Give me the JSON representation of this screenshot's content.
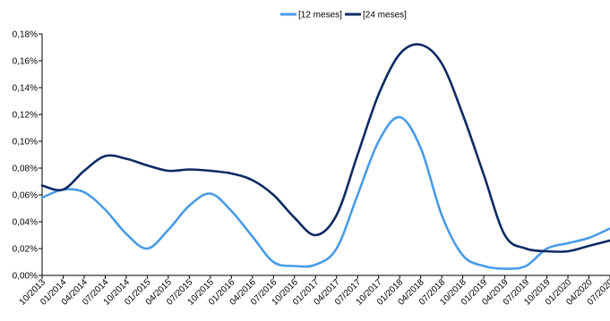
{
  "chart_data": {
    "type": "line",
    "title": "",
    "xlabel": "",
    "ylabel": "",
    "ylim": [
      0,
      0.18
    ],
    "yticks": [
      "0,00%",
      "0,02%",
      "0,04%",
      "0,06%",
      "0,08%",
      "0,10%",
      "0,12%",
      "0,14%",
      "0,16%",
      "0,18%"
    ],
    "ytick_values": [
      0,
      0.02,
      0.04,
      0.06,
      0.08,
      0.1,
      0.12,
      0.14,
      0.16,
      0.18
    ],
    "grid": false,
    "legend_position": "top",
    "x": [
      "10/2013",
      "01/2014",
      "04/2014",
      "07/2014",
      "10/2014",
      "01/2015",
      "04/2015",
      "07/2015",
      "10/2015",
      "01/2016",
      "04/2016",
      "07/2016",
      "10/2016",
      "01/2017",
      "04/2017",
      "07/2017",
      "10/2017",
      "01/2018",
      "04/2018",
      "07/2018",
      "10/2018",
      "01/2019",
      "04/2019",
      "07/2019",
      "10/2019",
      "01/2020",
      "04/2020",
      "07/2020"
    ],
    "series": [
      {
        "name": "[12 meses]",
        "color": "#4a9be8",
        "values": [
          0.058,
          0.064,
          0.062,
          0.049,
          0.031,
          0.02,
          0.034,
          0.052,
          0.061,
          0.048,
          0.029,
          0.01,
          0.007,
          0.008,
          0.02,
          0.06,
          0.1,
          0.118,
          0.095,
          0.045,
          0.015,
          0.007,
          0.005,
          0.007,
          0.02,
          0.024,
          0.028,
          0.035
        ]
      },
      {
        "name": "[24 meses]",
        "color": "#0d2a63",
        "values": [
          0.067,
          0.064,
          0.078,
          0.089,
          0.087,
          0.082,
          0.078,
          0.079,
          0.078,
          0.076,
          0.071,
          0.06,
          0.043,
          0.03,
          0.045,
          0.09,
          0.135,
          0.165,
          0.172,
          0.158,
          0.12,
          0.075,
          0.03,
          0.02,
          0.018,
          0.018,
          0.022,
          0.026
        ]
      }
    ]
  }
}
